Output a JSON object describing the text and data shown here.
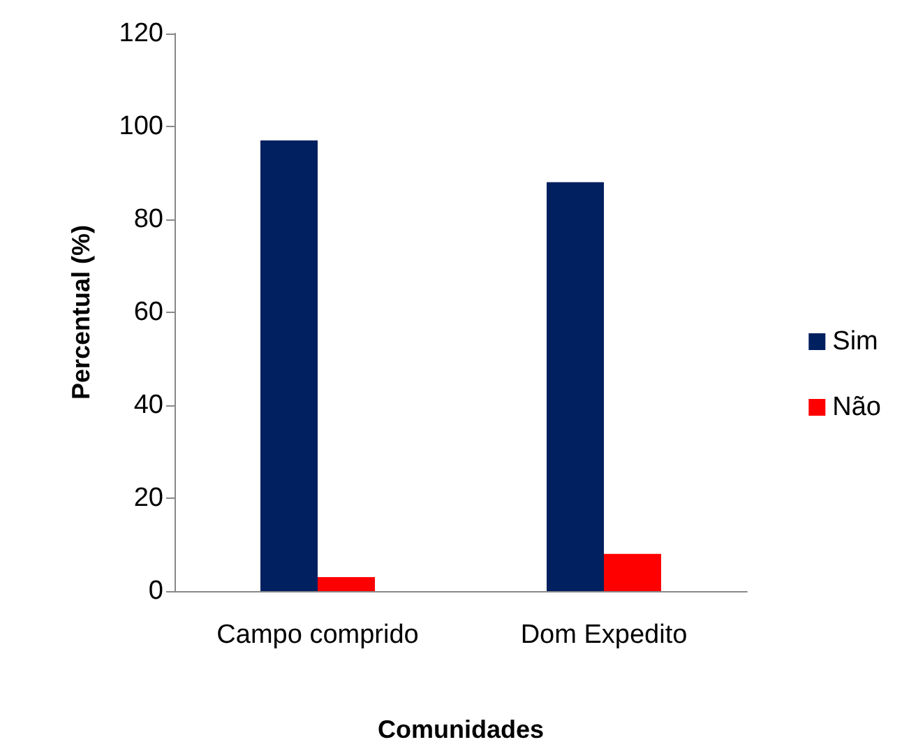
{
  "chart_data": {
    "type": "bar",
    "xlabel": "Comunidades",
    "ylabel": "Percentual (%)",
    "categories": [
      "Campo comprido",
      "Dom Expedito"
    ],
    "series": [
      {
        "name": "Sim",
        "color": "#002060",
        "values": [
          97,
          88
        ]
      },
      {
        "name": "Não",
        "color": "#ff0000",
        "values": [
          3,
          8
        ]
      }
    ],
    "ylim": [
      0,
      120
    ],
    "yticks": [
      0,
      20,
      40,
      60,
      80,
      100,
      120
    ],
    "grid": false,
    "legend": "right"
  }
}
